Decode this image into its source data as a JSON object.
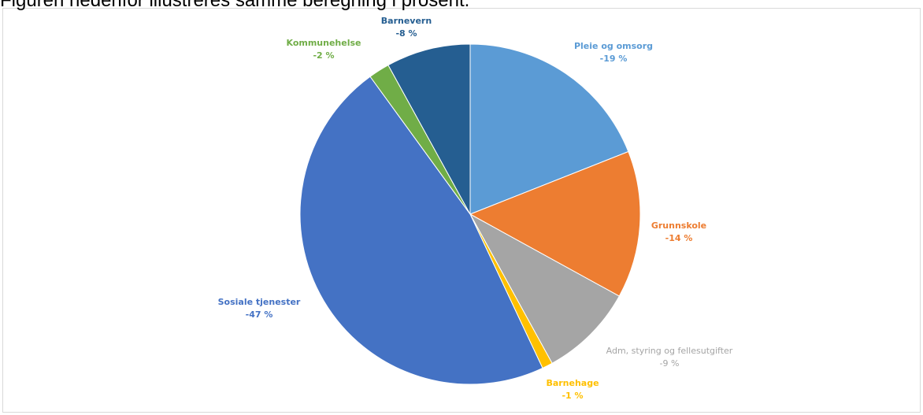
{
  "page": {
    "intro_text": "Figuren nedenfor illustreres samme beregning i prosent."
  },
  "chart_data": {
    "type": "pie",
    "title": "",
    "start_angle_deg": 0,
    "direction": "clockwise",
    "slices": [
      {
        "name": "Pleie og omsorg",
        "value": -19,
        "label": "-19 %",
        "color": "#5b9bd5"
      },
      {
        "name": "Grunnskole",
        "value": -14,
        "label": "-14 %",
        "color": "#ed7d31"
      },
      {
        "name": "Adm, styring og fellesutgifter",
        "value": -9,
        "label": "-9 %",
        "color": "#a5a5a5"
      },
      {
        "name": "Barnehage",
        "value": -1,
        "label": "-1 %",
        "color": "#ffc000"
      },
      {
        "name": "Sosiale tjenester",
        "value": -47,
        "label": "-47 %",
        "color": "#4472c4"
      },
      {
        "name": "Kommunehelse",
        "value": -2,
        "label": "-2 %",
        "color": "#70ad47"
      },
      {
        "name": "Barnevern",
        "value": -8,
        "label": "-8 %",
        "color": "#255e91"
      }
    ],
    "legend": "none",
    "data_labels": "outside"
  }
}
